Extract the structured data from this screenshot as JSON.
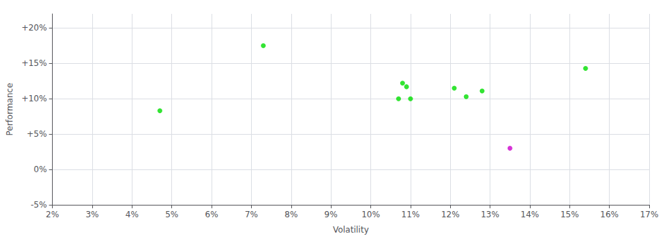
{
  "chart_data": {
    "type": "scatter",
    "xlabel": "Volatility",
    "ylabel": "Performance",
    "series": [
      {
        "color": "#00dd00",
        "x": [
          0.047,
          0.073,
          0.108,
          0.109,
          0.107,
          0.11,
          0.121,
          0.124,
          0.128,
          0.154
        ],
        "values": [
          0.083,
          0.175,
          0.122,
          0.117,
          0.1,
          0.1,
          0.115,
          0.103,
          0.111,
          0.143
        ]
      },
      {
        "color": "#cc00cc",
        "x": [
          0.135
        ],
        "values": [
          0.03
        ]
      }
    ],
    "xlim": [
      0.02,
      0.17
    ],
    "ylim": [
      -0.05,
      0.22
    ],
    "xticks": [
      {
        "value": 0.02,
        "label": "2%"
      },
      {
        "value": 0.03,
        "label": "3%"
      },
      {
        "value": 0.04,
        "label": "4%"
      },
      {
        "value": 0.05,
        "label": "5%"
      },
      {
        "value": 0.06,
        "label": "6%"
      },
      {
        "value": 0.07,
        "label": "7%"
      },
      {
        "value": 0.08,
        "label": "8%"
      },
      {
        "value": 0.09,
        "label": "9%"
      },
      {
        "value": 0.1,
        "label": "10%"
      },
      {
        "value": 0.11,
        "label": "11%"
      },
      {
        "value": 0.12,
        "label": "12%"
      },
      {
        "value": 0.13,
        "label": "13%"
      },
      {
        "value": 0.14,
        "label": "14%"
      },
      {
        "value": 0.15,
        "label": "15%"
      },
      {
        "value": 0.16,
        "label": "16%"
      },
      {
        "value": 0.17,
        "label": "17%"
      }
    ],
    "yticks": [
      {
        "value": -0.05,
        "label": "-5%"
      },
      {
        "value": 0.0,
        "label": "0%"
      },
      {
        "value": 0.05,
        "label": "+5%"
      },
      {
        "value": 0.1,
        "label": "+10%"
      },
      {
        "value": 0.15,
        "label": "+15%"
      },
      {
        "value": 0.2,
        "label": "+20%"
      }
    ],
    "grid": true
  }
}
